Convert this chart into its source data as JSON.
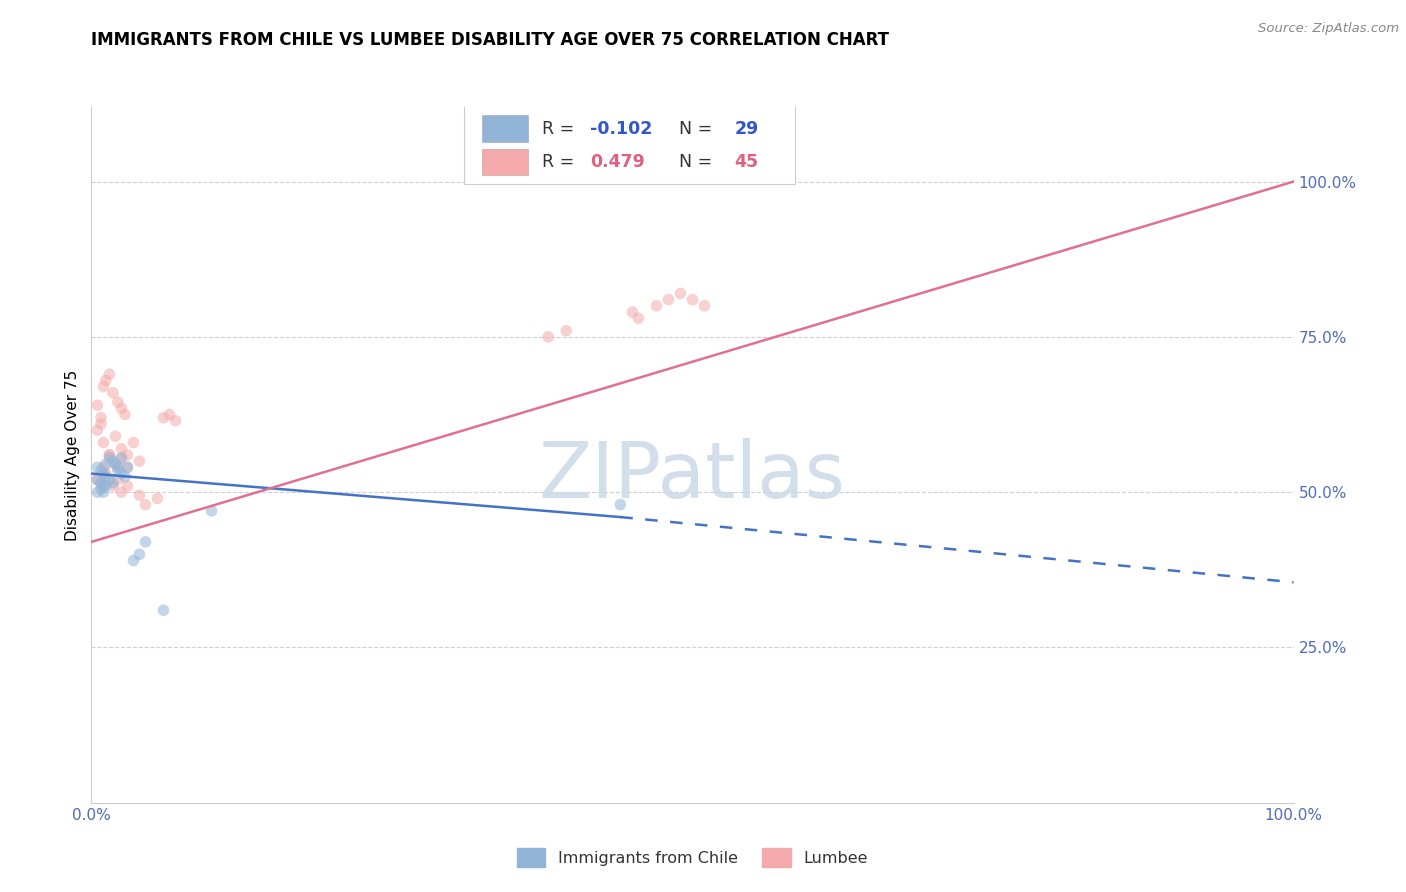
{
  "title": "IMMIGRANTS FROM CHILE VS LUMBEE DISABILITY AGE OVER 75 CORRELATION CHART",
  "source": "Source: ZipAtlas.com",
  "ylabel": "Disability Age Over 75",
  "axis_color": "#4f6bbd",
  "legend_entries": [
    {
      "r_val": "-0.102",
      "n_val": "29",
      "color": "#92b4d7"
    },
    {
      "r_val": "0.479",
      "n_val": "45",
      "color": "#f4aaaa"
    }
  ],
  "bottom_legend": [
    {
      "label": "Immigrants from Chile",
      "color": "#92b4d7"
    },
    {
      "label": "Lumbee",
      "color": "#f4aaaa"
    }
  ],
  "blue_scatter_x": [
    0.005,
    0.008,
    0.01,
    0.012,
    0.015,
    0.018,
    0.02,
    0.022,
    0.025,
    0.005,
    0.008,
    0.01,
    0.012,
    0.015,
    0.018,
    0.022,
    0.025,
    0.028,
    0.005,
    0.008,
    0.01,
    0.012,
    0.03,
    0.035,
    0.04,
    0.045,
    0.06,
    0.1,
    0.44
  ],
  "blue_scatter_y": [
    0.54,
    0.535,
    0.53,
    0.545,
    0.555,
    0.55,
    0.545,
    0.54,
    0.555,
    0.52,
    0.515,
    0.51,
    0.525,
    0.52,
    0.515,
    0.535,
    0.53,
    0.525,
    0.5,
    0.505,
    0.5,
    0.51,
    0.54,
    0.39,
    0.4,
    0.42,
    0.31,
    0.47,
    0.48
  ],
  "pink_scatter_x": [
    0.005,
    0.008,
    0.01,
    0.012,
    0.015,
    0.018,
    0.022,
    0.025,
    0.028,
    0.005,
    0.008,
    0.01,
    0.015,
    0.02,
    0.025,
    0.03,
    0.035,
    0.04,
    0.01,
    0.015,
    0.02,
    0.025,
    0.03,
    0.06,
    0.065,
    0.07,
    0.005,
    0.008,
    0.012,
    0.018,
    0.022,
    0.025,
    0.03,
    0.04,
    0.045,
    0.055,
    0.38,
    0.395,
    0.45,
    0.455,
    0.47,
    0.48,
    0.49,
    0.5,
    0.51
  ],
  "pink_scatter_y": [
    0.64,
    0.62,
    0.67,
    0.68,
    0.69,
    0.66,
    0.645,
    0.635,
    0.625,
    0.6,
    0.61,
    0.58,
    0.56,
    0.59,
    0.57,
    0.56,
    0.58,
    0.55,
    0.54,
    0.56,
    0.545,
    0.555,
    0.54,
    0.62,
    0.625,
    0.615,
    0.52,
    0.515,
    0.53,
    0.51,
    0.52,
    0.5,
    0.51,
    0.495,
    0.48,
    0.49,
    0.75,
    0.76,
    0.79,
    0.78,
    0.8,
    0.81,
    0.82,
    0.81,
    0.8
  ],
  "blue_line": {
    "x0": 0.0,
    "y0": 0.53,
    "x1": 0.44,
    "y1": 0.46,
    "x2": 1.0,
    "y2": 0.355
  },
  "pink_line": {
    "x0": 0.0,
    "y0": 0.42,
    "x1": 1.0,
    "y1": 1.0
  },
  "watermark": "ZIPatlas",
  "dot_size": 70,
  "dot_alpha": 0.55,
  "line_width": 1.8,
  "ylim": [
    0.0,
    1.12
  ],
  "xlim": [
    0.0,
    1.0
  ],
  "yticks": [
    0.25,
    0.5,
    0.75,
    1.0
  ],
  "ytick_labels": [
    "25.0%",
    "50.0%",
    "75.0%",
    "100.0%"
  ],
  "title_fontsize": 12,
  "axis_tick_fontsize": 11
}
